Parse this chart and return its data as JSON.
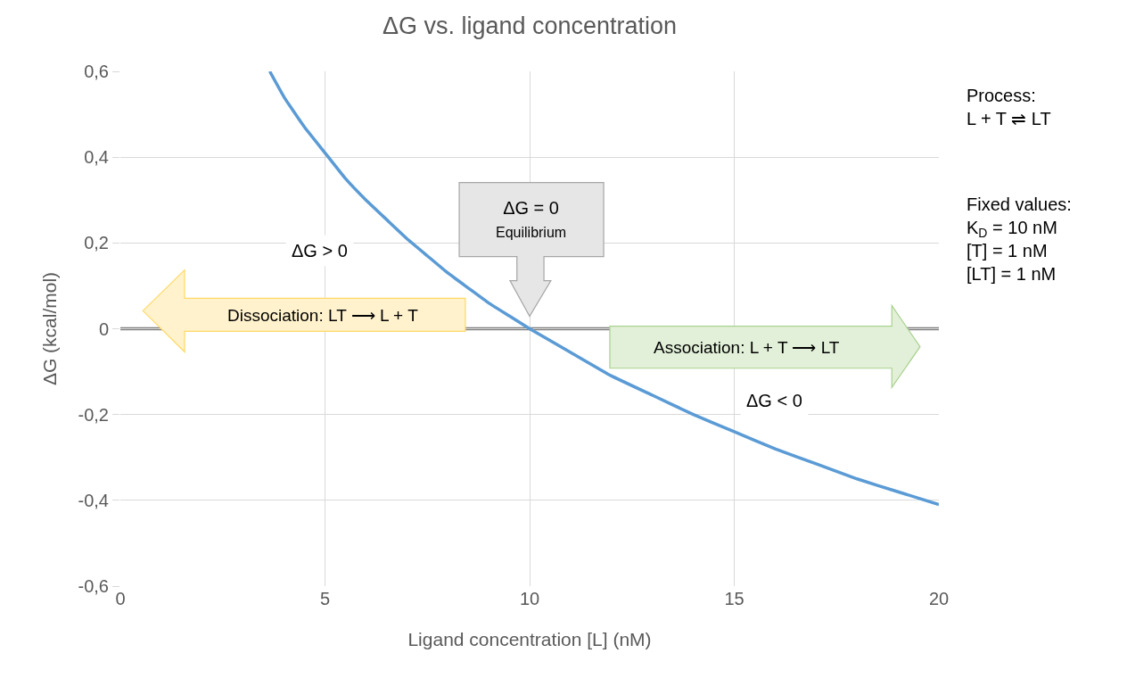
{
  "chart_data": {
    "type": "line",
    "title": "ΔG vs. ligand concentration",
    "xlabel": "Ligand concentration [L] (nM)",
    "ylabel": "ΔG (kcal/mol)",
    "x": [
      3.65,
      4,
      4.5,
      5,
      5.5,
      6,
      6.5,
      7,
      7.5,
      8,
      8.5,
      9,
      9.5,
      10,
      11,
      12,
      13,
      14,
      15,
      16,
      17,
      18,
      19,
      20
    ],
    "series": [
      {
        "color": "#5b9bd5",
        "values": [
          0.6,
          0.54,
          0.47,
          0.41,
          0.35,
          0.3,
          0.255,
          0.21,
          0.17,
          0.13,
          0.095,
          0.06,
          0.03,
          0,
          -0.055,
          -0.11,
          -0.155,
          -0.2,
          -0.24,
          -0.28,
          -0.315,
          -0.35,
          -0.38,
          -0.41
        ]
      }
    ],
    "xlim": [
      0,
      20
    ],
    "xticks": [
      0,
      5,
      10,
      15,
      20
    ],
    "ylim": [
      -0.6,
      0.6
    ],
    "yticks": [
      {
        "value": -0.6,
        "label": "-0,6"
      },
      {
        "value": -0.4,
        "label": "-0,4"
      },
      {
        "value": -0.2,
        "label": "-0,2"
      },
      0,
      {
        "value": 0.2,
        "label": "0,2"
      },
      {
        "value": 0.4,
        "label": "0,4"
      },
      {
        "value": 0.6,
        "label": "0,6"
      }
    ],
    "grid": true,
    "marker": "none",
    "line_style": "solid",
    "ref_lines": [
      {
        "axis": "y",
        "value": 0,
        "label": null,
        "color": "#808080"
      }
    ],
    "annotations": [
      "ΔG > 0",
      "ΔG = 0\nEquilibrium",
      "Dissociation: LT ⟶ L + T",
      "Association: L + T ⟶ LT",
      "ΔG < 0",
      "Process:\nL + T ⇌ LT",
      "Fixed values:\nK$_{D}$ = 10 nM\n[T] = 1 nM\n[LT] = 1 nM"
    ]
  }
}
